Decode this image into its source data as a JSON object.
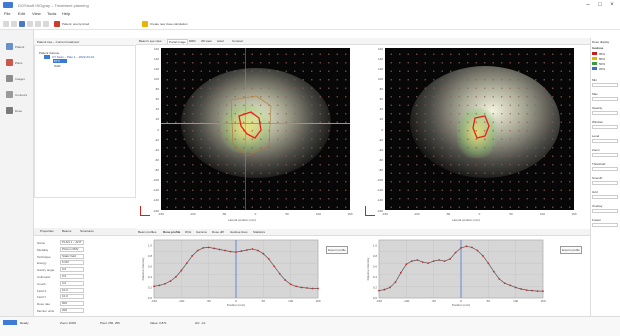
{
  "window": {
    "title": "DOSIsoft ISOgray – Treatment planning",
    "controls": [
      "–",
      "□",
      "×"
    ]
  },
  "menus": [
    "File",
    "Edit",
    "View",
    "Tools",
    "Help"
  ],
  "toolbar": {
    "item1": "Patient: anonymized",
    "item2": "Create new dose calculation"
  },
  "leftrail": [
    {
      "label": "Patient",
      "color": "#6b8fc8"
    },
    {
      "label": "Plans",
      "color": "#c7584a"
    },
    {
      "label": "Images",
      "color": "#8c8c8c"
    },
    {
      "label": "Contours",
      "color": "#9a9a9a"
    },
    {
      "label": "Dose",
      "color": "#7a7a7a"
    }
  ],
  "tree": {
    "header": "Patient tree – Current treatment",
    "root": "Patient Volume",
    "child1": "CT Scan – Plan 1 – 2022-03-01",
    "child2": "PTV",
    "child3": "OAR"
  },
  "proptabs": [
    "Properties",
    "Beams",
    "Structures"
  ],
  "props": [
    {
      "label": "Name",
      "value": "PLAN 1 – ANT"
    },
    {
      "label": "Modality",
      "value": "Photon 6MV"
    },
    {
      "label": "Technique",
      "value": "Static field"
    },
    {
      "label": "Energy",
      "value": "6 MV"
    },
    {
      "label": "Gantry angle",
      "value": "0.0"
    },
    {
      "label": "Collimator",
      "value": "0.0"
    },
    {
      "label": "Couch",
      "value": "0.0"
    },
    {
      "label": "Field X",
      "value": "10.0"
    },
    {
      "label": "Field Y",
      "value": "10.0"
    },
    {
      "label": "Dose rate",
      "value": "600"
    },
    {
      "label": "Monitor units",
      "value": "200"
    }
  ],
  "viewtabs": [
    "Beam's eye view",
    "Portal image",
    "DRR",
    "3D view",
    "Axial",
    "Coronal"
  ],
  "yticks": [
    "160",
    "140",
    "120",
    "100",
    "80",
    "60",
    "40",
    "20",
    "0",
    "-20",
    "-40",
    "-60",
    "-80",
    "-100",
    "-120",
    "-140",
    "-160"
  ],
  "xticks": [
    "-150",
    "-100",
    "-50",
    "0",
    "50",
    "100",
    "150"
  ],
  "left_xlabel": "Lateral position (mm)",
  "right_xlabel": "Lateral position (mm)",
  "lowertabs": [
    "Beam profiles",
    "Dose profile",
    "DVH",
    "Gamma",
    "Dose diff",
    "Isodose lines",
    "Statistics"
  ],
  "profile_button_left": "Export profile",
  "profile_button_right": "Export profile",
  "profile_ylabel": "Relative intensity",
  "profile_xlabel": "Position (mm)",
  "chart_data": [
    {
      "type": "line",
      "x": [
        -150,
        -140,
        -130,
        -120,
        -110,
        -100,
        -90,
        -80,
        -70,
        -60,
        -50,
        -40,
        -30,
        -20,
        -10,
        0,
        10,
        20,
        30,
        40,
        50,
        60,
        70,
        80,
        90,
        100,
        110,
        120,
        130,
        140,
        150
      ],
      "values": [
        0.22,
        0.24,
        0.27,
        0.32,
        0.4,
        0.52,
        0.66,
        0.8,
        0.9,
        0.95,
        0.96,
        0.94,
        0.92,
        0.9,
        0.88,
        0.87,
        0.89,
        0.91,
        0.93,
        0.9,
        0.84,
        0.74,
        0.6,
        0.46,
        0.34,
        0.26,
        0.22,
        0.2,
        0.19,
        0.18,
        0.18
      ],
      "ylim": [
        0,
        1.1
      ],
      "xlim": [
        -150,
        150
      ],
      "cursor_x": 0
    },
    {
      "type": "line",
      "x": [
        -150,
        -140,
        -130,
        -120,
        -110,
        -100,
        -90,
        -80,
        -70,
        -60,
        -50,
        -40,
        -30,
        -20,
        -10,
        0,
        10,
        20,
        30,
        40,
        50,
        60,
        70,
        80,
        90,
        100,
        110,
        120,
        130,
        140,
        150
      ],
      "values": [
        0.14,
        0.16,
        0.2,
        0.3,
        0.48,
        0.64,
        0.7,
        0.72,
        0.68,
        0.66,
        0.7,
        0.72,
        0.7,
        0.74,
        0.86,
        0.95,
        0.98,
        0.96,
        0.9,
        0.8,
        0.66,
        0.5,
        0.36,
        0.28,
        0.24,
        0.2,
        0.17,
        0.15,
        0.14,
        0.13,
        0.13
      ],
      "ylim": [
        0,
        1.1
      ],
      "xlim": [
        -150,
        150
      ],
      "cursor_x": 0
    }
  ],
  "rightpanel": {
    "title": "Dose display",
    "legend_title": "Isodose",
    "legend": [
      "95%",
      "80%",
      "50%",
      "20%"
    ],
    "legend_colors": [
      "#c61d1d",
      "#e0b400",
      "#3c9b3c",
      "#3d6bd6"
    ],
    "opts": [
      "Min",
      "Max",
      "Opacity",
      "Window",
      "Level",
      "Zoom",
      "Threshold",
      "Smooth",
      "Grid",
      "Overlay",
      "Fusion"
    ]
  },
  "status": {
    "cells": [
      "Ready",
      "Zoom 100%",
      "Pixel: 256, 256",
      "Value: 0.871",
      "HU: -12"
    ]
  }
}
